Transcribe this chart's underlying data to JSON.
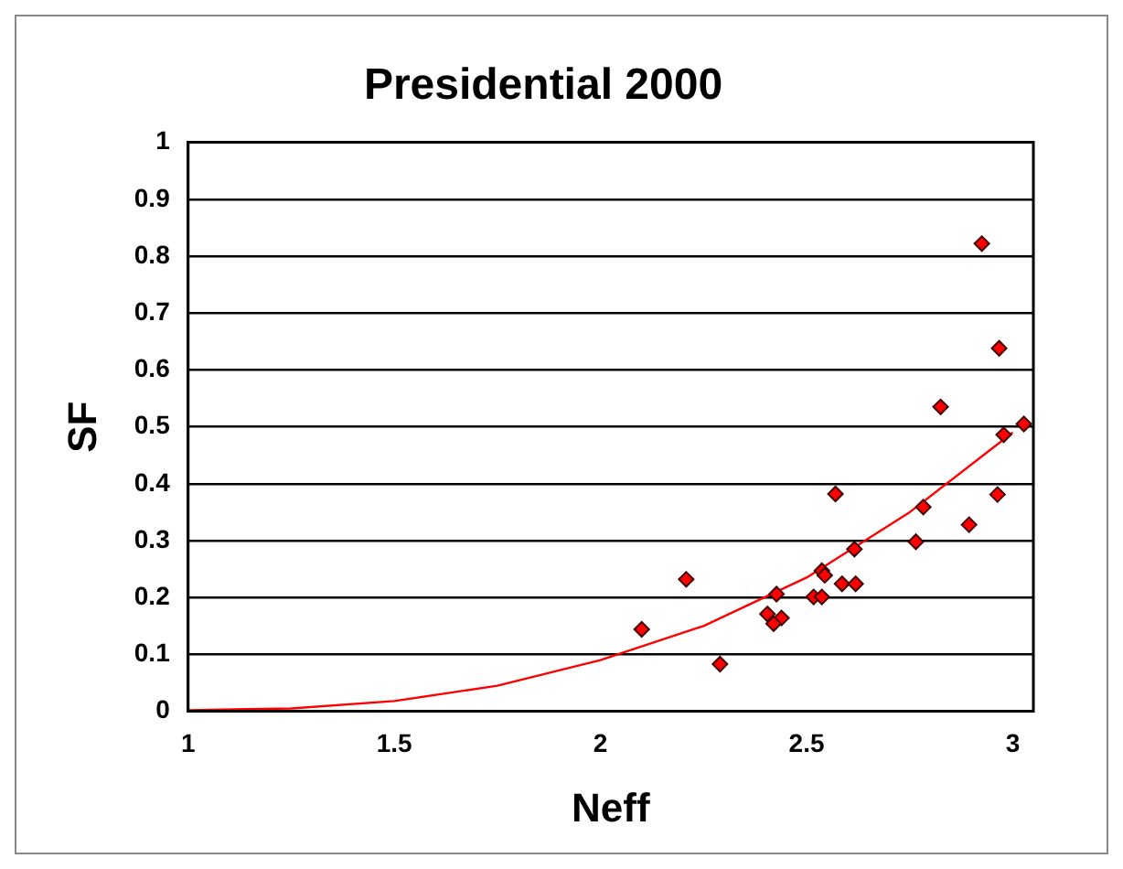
{
  "chart_data": {
    "type": "scatter",
    "title": "Presidential 2000",
    "xlabel": "Neff",
    "ylabel": "SF",
    "xlim": [
      1,
      3.05
    ],
    "xticks": [
      1,
      1.5,
      2,
      2.5,
      3
    ],
    "ylim": [
      0,
      1
    ],
    "yticks": [
      0,
      0.1,
      0.2,
      0.3,
      0.4,
      0.5,
      0.6,
      0.7,
      0.8,
      0.9,
      1
    ],
    "grid": "y",
    "legend": false,
    "marker": "diamond",
    "series": [
      {
        "color": "#ff0000",
        "x": [
          2.925,
          2.967,
          2.825,
          2.978,
          2.57,
          2.963,
          2.783,
          2.894,
          2.765,
          2.616,
          2.208,
          2.537,
          2.544,
          2.586,
          2.619,
          2.427,
          2.517,
          2.537,
          2.405,
          2.439,
          2.42,
          2.1,
          2.29,
          3.027
        ],
        "values": [
          0.822,
          0.638,
          0.535,
          0.486,
          0.382,
          0.381,
          0.359,
          0.328,
          0.298,
          0.285,
          0.232,
          0.247,
          0.239,
          0.224,
          0.224,
          0.206,
          0.201,
          0.201,
          0.171,
          0.164,
          0.154,
          0.144,
          0.083,
          0.505
        ]
      },
      {
        "type": "line",
        "color": "#ff0000",
        "marker": "none",
        "x": [
          1,
          1.25,
          1.5,
          1.75,
          2,
          2.25,
          2.5,
          2.75,
          3
        ],
        "values": [
          0.002,
          0.005,
          0.018,
          0.045,
          0.09,
          0.15,
          0.235,
          0.35,
          0.49
        ]
      }
    ]
  }
}
